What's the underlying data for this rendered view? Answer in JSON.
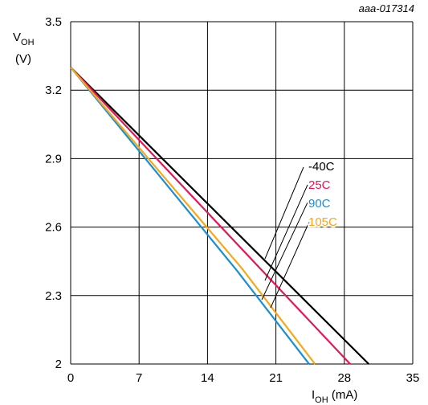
{
  "figure_id": "aaa-017314",
  "chart_data": {
    "type": "line",
    "title": "",
    "xlabel": {
      "main": "I",
      "sub": "OH",
      "unit": " (mA)"
    },
    "ylabel": {
      "main": "V",
      "sub": "OH",
      "unit": "(V)"
    },
    "xlim": [
      0,
      35
    ],
    "ylim": [
      2,
      3.5
    ],
    "xticks": [
      "0",
      "7",
      "14",
      "21",
      "28",
      "35"
    ],
    "yticks": [
      "2",
      "2.3",
      "2.6",
      "2.9",
      "3.2",
      "3.5"
    ],
    "grid": true,
    "legend_placement": "inside-right, with leader lines to curves",
    "series": [
      {
        "name": "-40C",
        "color": "#000000",
        "x": [
          0,
          30.5
        ],
        "y": [
          3.3,
          2.0
        ]
      },
      {
        "name": "25C",
        "color": "#e0185a",
        "x": [
          0,
          28.6
        ],
        "y": [
          3.3,
          2.0
        ]
      },
      {
        "name": "90C",
        "color": "#1a8fd0",
        "x": [
          0,
          17.0,
          24.4
        ],
        "y": [
          3.3,
          2.41,
          2.0
        ]
      },
      {
        "name": "105C",
        "color": "#f5a81c",
        "x": [
          0,
          17.5,
          25.0
        ],
        "y": [
          3.3,
          2.42,
          2.0
        ]
      }
    ]
  }
}
